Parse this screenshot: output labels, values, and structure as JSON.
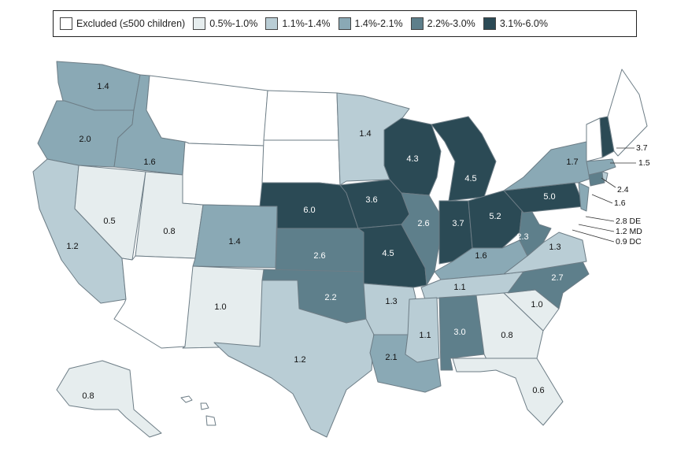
{
  "legend": {
    "items": [
      {
        "label": "Excluded (≤500 children)",
        "color": "#ffffff"
      },
      {
        "label": "0.5%-1.0%",
        "color": "#e6edee"
      },
      {
        "label": "1.1%-1.4%",
        "color": "#b9cdd5"
      },
      {
        "label": "1.4%-2.1%",
        "color": "#8aa9b5"
      },
      {
        "label": "2.2%-3.0%",
        "color": "#5e7f8b"
      },
      {
        "label": "3.1%-6.0%",
        "color": "#2b4a55"
      }
    ]
  },
  "states": [
    {
      "name": "WA",
      "value": "1.4",
      "bin": 3
    },
    {
      "name": "OR",
      "value": "2.0",
      "bin": 3
    },
    {
      "name": "ID",
      "value": "1.6",
      "bin": 3
    },
    {
      "name": "CA",
      "value": "1.2",
      "bin": 2
    },
    {
      "name": "NV",
      "value": "0.5",
      "bin": 1
    },
    {
      "name": "UT",
      "value": "0.8",
      "bin": 1
    },
    {
      "name": "AZ",
      "value": "",
      "bin": 0
    },
    {
      "name": "MT",
      "value": "",
      "bin": 0
    },
    {
      "name": "WY",
      "value": "",
      "bin": 0
    },
    {
      "name": "CO",
      "value": "1.4",
      "bin": 3
    },
    {
      "name": "NM",
      "value": "1.0",
      "bin": 1
    },
    {
      "name": "ND",
      "value": "",
      "bin": 0
    },
    {
      "name": "SD",
      "value": "",
      "bin": 0
    },
    {
      "name": "NE",
      "value": "6.0",
      "bin": 5
    },
    {
      "name": "KS",
      "value": "2.6",
      "bin": 4
    },
    {
      "name": "OK",
      "value": "2.2",
      "bin": 4
    },
    {
      "name": "TX",
      "value": "1.2",
      "bin": 2
    },
    {
      "name": "MN",
      "value": "1.4",
      "bin": 2
    },
    {
      "name": "IA",
      "value": "3.6",
      "bin": 5
    },
    {
      "name": "MO",
      "value": "4.5",
      "bin": 5
    },
    {
      "name": "AR",
      "value": "1.3",
      "bin": 2
    },
    {
      "name": "LA",
      "value": "2.1",
      "bin": 3
    },
    {
      "name": "WI",
      "value": "4.3",
      "bin": 5
    },
    {
      "name": "IL",
      "value": "2.6",
      "bin": 4
    },
    {
      "name": "MI",
      "value": "4.5",
      "bin": 5
    },
    {
      "name": "IN",
      "value": "3.7",
      "bin": 5
    },
    {
      "name": "OH",
      "value": "5.2",
      "bin": 5
    },
    {
      "name": "KY",
      "value": "1.6",
      "bin": 3
    },
    {
      "name": "TN",
      "value": "1.1",
      "bin": 2
    },
    {
      "name": "MS",
      "value": "1.1",
      "bin": 2
    },
    {
      "name": "AL",
      "value": "3.0",
      "bin": 4
    },
    {
      "name": "GA",
      "value": "0.8",
      "bin": 1
    },
    {
      "name": "FL",
      "value": "0.6",
      "bin": 1
    },
    {
      "name": "SC",
      "value": "1.0",
      "bin": 1
    },
    {
      "name": "NC",
      "value": "2.7",
      "bin": 4
    },
    {
      "name": "VA",
      "value": "1.3",
      "bin": 2
    },
    {
      "name": "WV",
      "value": "2.3",
      "bin": 4
    },
    {
      "name": "PA",
      "value": "5.0",
      "bin": 5
    },
    {
      "name": "NY",
      "value": "1.7",
      "bin": 3
    },
    {
      "name": "NJ",
      "value": "1.6",
      "bin": 3
    },
    {
      "name": "CT",
      "value": "2.4",
      "bin": 4
    },
    {
      "name": "MA",
      "value": "1.5",
      "bin": 3
    },
    {
      "name": "NH",
      "value": "3.7",
      "bin": 5
    },
    {
      "name": "VT",
      "value": "",
      "bin": 0
    },
    {
      "name": "ME",
      "value": "",
      "bin": 0
    },
    {
      "name": "RI",
      "value": "",
      "bin": 2
    },
    {
      "name": "AK",
      "value": "0.8",
      "bin": 1
    },
    {
      "name": "HI",
      "value": "",
      "bin": 0
    }
  ],
  "callouts": {
    "de": "2.8 DE",
    "md": "1.2 MD",
    "dc": "0.9 DC"
  }
}
